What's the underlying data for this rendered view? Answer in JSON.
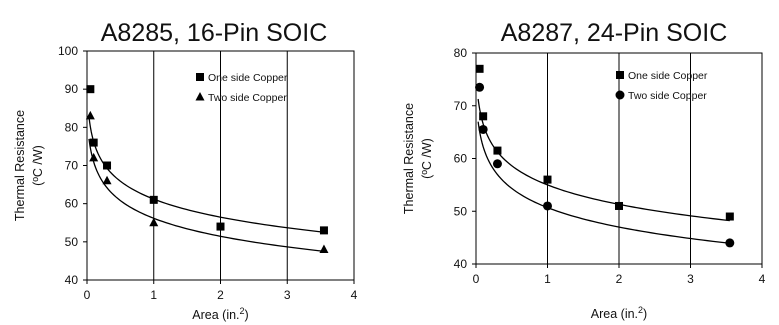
{
  "chart_data": [
    {
      "id": "a8285",
      "type": "scatter",
      "title": "A8285, 16-Pin SOIC",
      "xlabel": "Area (in.",
      "xlabel_sup": "2",
      "xlabel_suffix": ")",
      "ylabel_lines": [
        "Thermal Resistance",
        "(ºC /W)"
      ],
      "xlim": [
        0,
        4
      ],
      "ylim": [
        40,
        100
      ],
      "x_ticks": [
        0,
        1,
        2,
        3,
        4
      ],
      "y_ticks": [
        40,
        50,
        60,
        70,
        80,
        90,
        100
      ],
      "grid": "vertical",
      "legend_position": "top-right",
      "series": [
        {
          "name": "One side Copper",
          "marker": "square",
          "x": [
            0.05,
            0.1,
            0.3,
            1,
            2,
            3.55
          ],
          "y": [
            90,
            76,
            70,
            61,
            54,
            53
          ],
          "curve": {
            "a": 61.3,
            "b": 6.9,
            "c": 0.015
          }
        },
        {
          "name": "Two side Copper",
          "marker": "triangle",
          "x": [
            0.05,
            0.1,
            0.3,
            1,
            3.55
          ],
          "y": [
            83,
            72,
            66,
            55,
            48
          ],
          "curve": {
            "a": 56.3,
            "b": 6.9,
            "c": 0.02
          }
        }
      ]
    },
    {
      "id": "a8287",
      "type": "scatter",
      "title": "A8287, 24-Pin SOIC",
      "xlabel": "Area (in.",
      "xlabel_sup": "2",
      "xlabel_suffix": ")",
      "ylabel_lines": [
        "Thermal Resistance",
        "(ºC /W)"
      ],
      "xlim": [
        0,
        4
      ],
      "ylim": [
        40,
        80
      ],
      "x_ticks": [
        0,
        1,
        2,
        3,
        4
      ],
      "y_ticks": [
        40,
        50,
        60,
        70,
        80
      ],
      "grid": "vertical",
      "legend_position": "top-right",
      "series": [
        {
          "name": "One side Copper",
          "marker": "square",
          "x": [
            0.05,
            0.1,
            0.3,
            1,
            2,
            3.55
          ],
          "y": [
            77,
            68,
            61.5,
            56,
            51,
            49
          ],
          "curve": {
            "a": 55.1,
            "b": 5.4,
            "c": 0.02
          }
        },
        {
          "name": "Two side Copper",
          "marker": "circle",
          "x": [
            0.05,
            0.1,
            0.3,
            1,
            3.55
          ],
          "y": [
            73.5,
            65.5,
            59,
            51,
            44
          ],
          "curve": {
            "a": 50.8,
            "b": 5.4,
            "c": 0.02
          }
        }
      ]
    }
  ]
}
